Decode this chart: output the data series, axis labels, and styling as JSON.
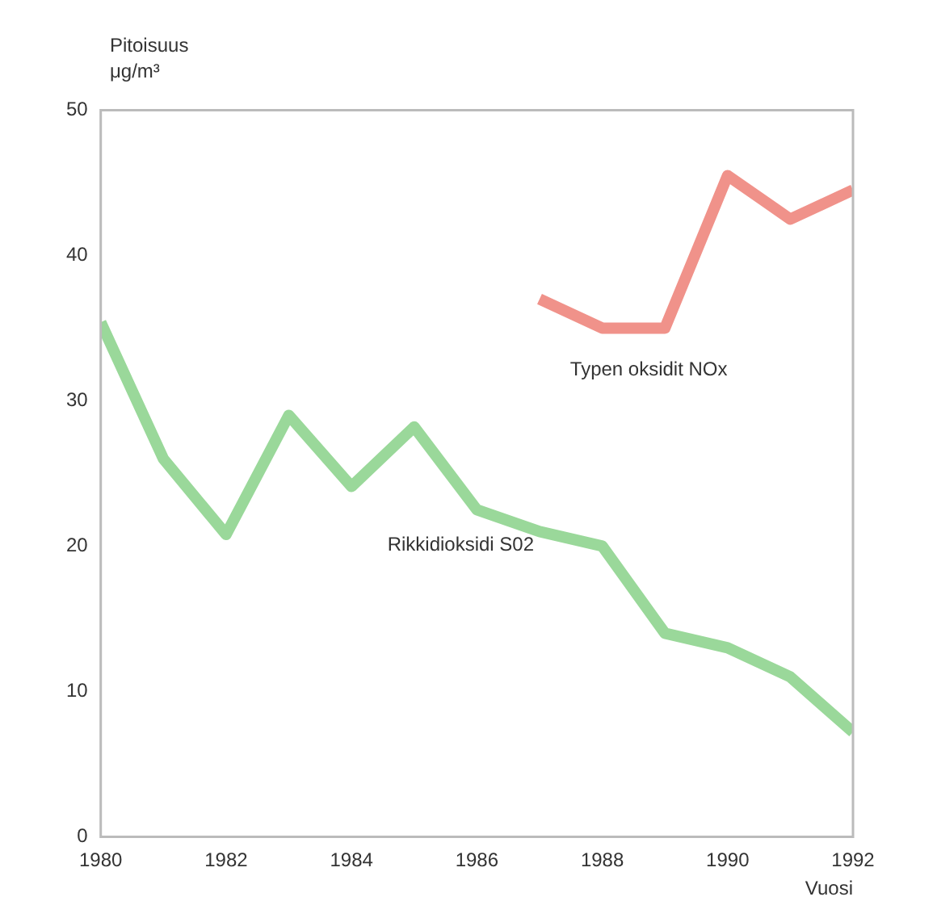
{
  "chart_data": {
    "type": "line",
    "ylabel": "Pitoisuus\nμg/m³",
    "xlabel": "Vuosi",
    "xlim": [
      1980,
      1992
    ],
    "xticks": [
      1980,
      1982,
      1984,
      1986,
      1988,
      1990,
      1992
    ],
    "ylim": [
      0,
      50
    ],
    "yticks": [
      0,
      10,
      20,
      30,
      40,
      50
    ],
    "grid": false,
    "legend": false,
    "marker": "none",
    "line_style": "solid",
    "series": [
      {
        "name": "Rikkidioksidi S02",
        "color": "#9ad89a",
        "x": [
          1980,
          1981,
          1982,
          1983,
          1984,
          1985,
          1986,
          1987,
          1988,
          1989,
          1990,
          1991,
          1992
        ],
        "values": [
          35.4,
          26,
          20.8,
          29,
          24.1,
          28.2,
          22.5,
          21,
          20,
          14,
          13,
          11,
          7.2
        ]
      },
      {
        "name": "Typen oksidit NOx",
        "color": "#f0928a",
        "x": [
          1987,
          1988,
          1989,
          1990,
          1991,
          1992
        ],
        "values": [
          37,
          35,
          35,
          45.5,
          42.5,
          44.5
        ]
      }
    ]
  }
}
